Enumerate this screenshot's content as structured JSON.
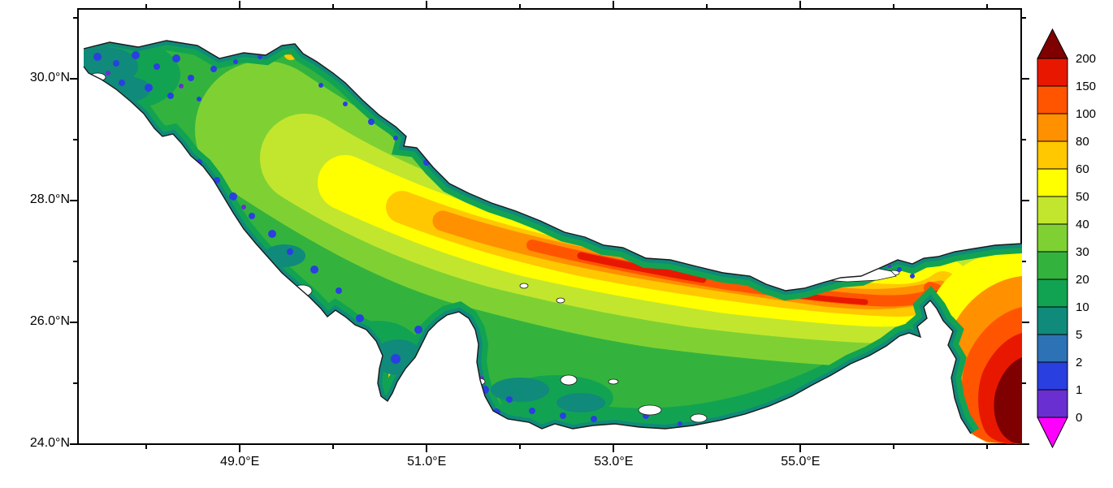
{
  "chart_data": {
    "type": "heatmap",
    "map_region": "Persian Gulf, Strait of Hormuz and Gulf of Oman",
    "title": "",
    "x_axis": {
      "label": "",
      "ticks": [
        {
          "value": 49,
          "label": "49.0°E"
        },
        {
          "value": 51,
          "label": "51.0°E"
        },
        {
          "value": 53,
          "label": "53.0°E"
        },
        {
          "value": 55,
          "label": "55.0°E"
        }
      ],
      "minor_ticks": [
        48,
        50,
        52,
        54,
        56,
        57
      ],
      "range": [
        47.26,
        57.37
      ]
    },
    "y_axis": {
      "label": "",
      "ticks": [
        {
          "value": 24,
          "label": "24.0°N"
        },
        {
          "value": 26,
          "label": "26.0°N"
        },
        {
          "value": 28,
          "label": "28.0°N"
        },
        {
          "value": 30,
          "label": "30.0°N"
        }
      ],
      "minor_ticks": [
        25,
        27,
        29,
        31
      ],
      "range": [
        23.99,
        31.16
      ]
    },
    "colorbar": {
      "levels": [
        0,
        1,
        2,
        5,
        10,
        20,
        30,
        40,
        50,
        60,
        80,
        100,
        150,
        200
      ],
      "band_colors": [
        "#6a2fd0",
        "#2a3fe0",
        "#2d72b5",
        "#108a7a",
        "#12a352",
        "#33b33e",
        "#7fd133",
        "#c2e62e",
        "#ffff00",
        "#ffc800",
        "#ff9000",
        "#ff5500",
        "#e81800"
      ],
      "below_min_color": "#ff00ff",
      "above_max_color": "#7f0000",
      "outline_color": "#000000"
    },
    "land_color": "#ffffff",
    "coastline_color": "#1a1a1a",
    "frame_color": "#000000",
    "grid": "off",
    "legend_position": "right-colorbar"
  }
}
